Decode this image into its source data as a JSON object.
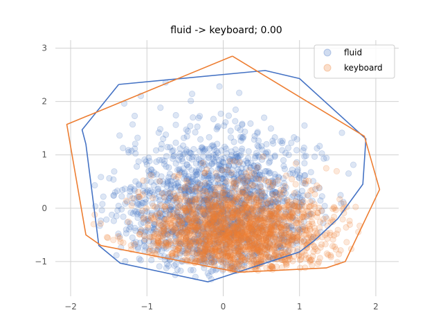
{
  "chart_data": {
    "type": "scatter",
    "title": "fluid -> keyboard; 0.00",
    "xlabel": "",
    "ylabel": "",
    "xlim": [
      -2.2,
      2.3
    ],
    "ylim": [
      -1.65,
      3.15
    ],
    "xticks": [
      -2,
      -1,
      0,
      1,
      2
    ],
    "yticks": [
      -1,
      0,
      1,
      2,
      3
    ],
    "xtick_labels": [
      "−2",
      "−1",
      "0",
      "1",
      "2"
    ],
    "ytick_labels": [
      "−1",
      "0",
      "1",
      "2",
      "3"
    ],
    "grid": true,
    "legend_position": "top-right",
    "series": [
      {
        "name": "fluid",
        "color": "#4472C4",
        "marker_alpha": 0.18,
        "center": [
          -0.05,
          0.0
        ],
        "spread": [
          0.65,
          0.72
        ],
        "count": 1600,
        "hull": [
          [
            -1.37,
            2.32
          ],
          [
            -1.85,
            1.47
          ],
          [
            -1.8,
            1.2
          ],
          [
            -1.63,
            -0.7
          ],
          [
            -1.35,
            -1.03
          ],
          [
            -0.2,
            -1.38
          ],
          [
            1.0,
            -0.82
          ],
          [
            1.2,
            -0.6
          ],
          [
            1.5,
            -0.2
          ],
          [
            1.83,
            0.45
          ],
          [
            1.87,
            1.3
          ],
          [
            1.0,
            2.43
          ],
          [
            0.55,
            2.58
          ],
          [
            -1.37,
            2.32
          ]
        ]
      },
      {
        "name": "keyboard",
        "color": "#ED7D31",
        "marker_alpha": 0.18,
        "center": [
          0.15,
          -0.45
        ],
        "spread": [
          0.6,
          0.45
        ],
        "count": 1800,
        "hull": [
          [
            0.12,
            2.85
          ],
          [
            -2.05,
            1.57
          ],
          [
            -1.8,
            -0.5
          ],
          [
            -1.6,
            -0.7
          ],
          [
            0.2,
            -1.2
          ],
          [
            1.35,
            -1.12
          ],
          [
            1.6,
            -1.0
          ],
          [
            2.05,
            0.35
          ],
          [
            1.85,
            1.35
          ],
          [
            0.12,
            2.85
          ]
        ]
      }
    ]
  }
}
